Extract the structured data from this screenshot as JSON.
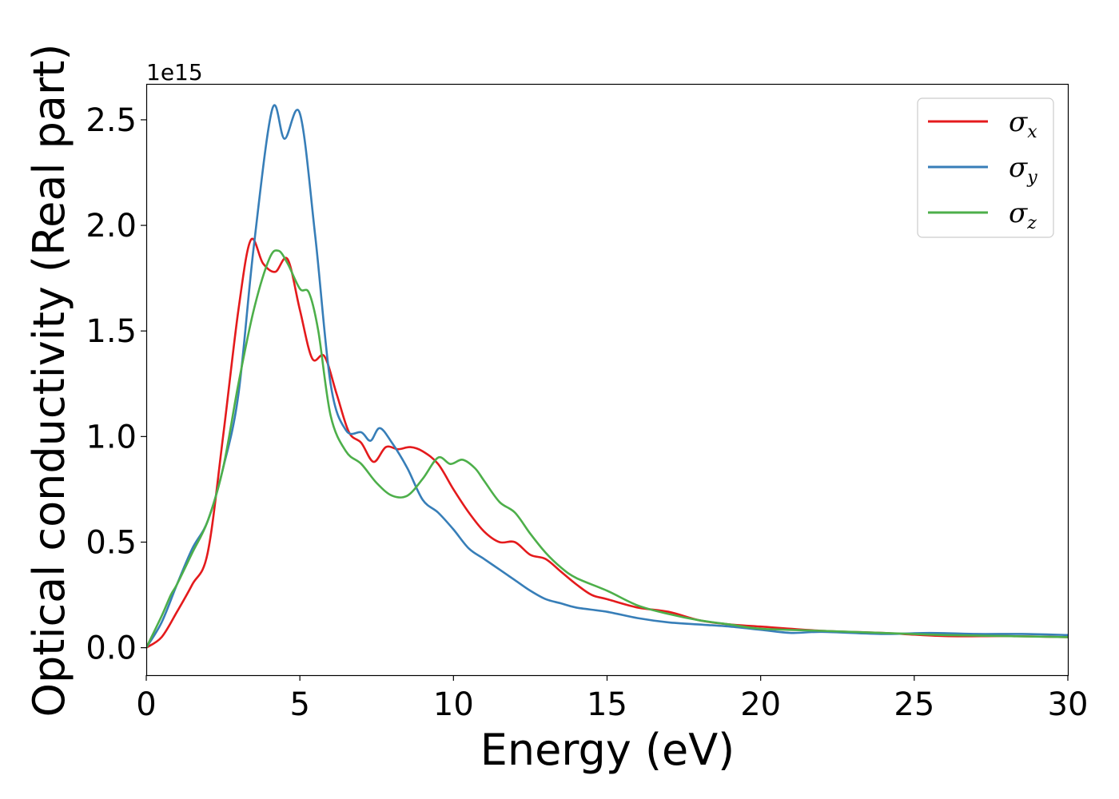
{
  "chart_data": {
    "type": "line",
    "title": "",
    "xlabel": "Energy (eV)",
    "ylabel": "Optical conductivity (Real part)",
    "y_offset_label": "1e15",
    "xlim": [
      0,
      30
    ],
    "ylim": [
      -0.13,
      2.67
    ],
    "x_ticks": [
      0,
      5,
      10,
      15,
      20,
      25,
      30
    ],
    "x_tick_labels": [
      "0",
      "5",
      "10",
      "15",
      "20",
      "25",
      "30"
    ],
    "y_ticks": [
      0.0,
      0.5,
      1.0,
      1.5,
      2.0,
      2.5
    ],
    "y_tick_labels": [
      "0.0",
      "0.5",
      "1.0",
      "1.5",
      "2.0",
      "2.5"
    ],
    "grid": false,
    "legend_position": "top-right",
    "series": [
      {
        "name": "σx",
        "symbol": "σ",
        "subscript": "x",
        "color": "#e41a1c",
        "x": [
          0,
          0.5,
          1,
          1.5,
          2,
          2.5,
          3,
          3.4,
          3.8,
          4.2,
          4.6,
          5,
          5.4,
          5.8,
          6.2,
          6.6,
          7,
          7.4,
          7.8,
          8.2,
          8.6,
          9,
          9.5,
          10,
          10.5,
          11,
          11.5,
          12,
          12.5,
          13,
          13.5,
          14,
          14.5,
          15,
          16,
          17,
          18,
          19,
          20,
          22,
          24,
          26,
          28,
          30
        ],
        "y": [
          0,
          0.05,
          0.17,
          0.3,
          0.45,
          1.0,
          1.6,
          1.93,
          1.82,
          1.78,
          1.84,
          1.6,
          1.37,
          1.38,
          1.2,
          1.02,
          0.97,
          0.88,
          0.95,
          0.94,
          0.95,
          0.93,
          0.87,
          0.75,
          0.64,
          0.55,
          0.5,
          0.5,
          0.44,
          0.42,
          0.36,
          0.3,
          0.25,
          0.23,
          0.19,
          0.17,
          0.13,
          0.11,
          0.1,
          0.08,
          0.07,
          0.055,
          0.055,
          0.05
        ]
      },
      {
        "name": "σy",
        "symbol": "σ",
        "subscript": "y",
        "color": "#377eb8",
        "x": [
          0,
          0.5,
          1,
          1.5,
          2,
          2.5,
          3,
          3.5,
          4.1,
          4.5,
          5,
          5.5,
          6,
          6.5,
          7,
          7.3,
          7.6,
          8,
          8.5,
          9,
          9.5,
          10,
          10.5,
          11,
          11.5,
          12,
          12.5,
          13,
          13.5,
          14,
          15,
          16,
          17,
          18,
          19,
          20,
          21,
          22,
          24,
          25.5,
          27,
          28.5,
          30
        ],
        "y": [
          0,
          0.12,
          0.3,
          0.47,
          0.6,
          0.85,
          1.2,
          1.9,
          2.55,
          2.41,
          2.53,
          1.95,
          1.25,
          1.03,
          1.02,
          0.98,
          1.04,
          0.97,
          0.85,
          0.7,
          0.64,
          0.56,
          0.47,
          0.42,
          0.37,
          0.32,
          0.27,
          0.23,
          0.21,
          0.19,
          0.17,
          0.14,
          0.12,
          0.11,
          0.1,
          0.085,
          0.07,
          0.075,
          0.065,
          0.07,
          0.065,
          0.065,
          0.06
        ]
      },
      {
        "name": "σz",
        "symbol": "σ",
        "subscript": "z",
        "color": "#4daf4a",
        "x": [
          0,
          0.5,
          0.8,
          1,
          1.5,
          2,
          2.5,
          3,
          3.5,
          4,
          4.3,
          4.6,
          5,
          5.3,
          5.6,
          6,
          6.5,
          7,
          7.5,
          8,
          8.5,
          9,
          9.5,
          9.9,
          10.3,
          10.7,
          11,
          11.5,
          12,
          12.5,
          13,
          13.5,
          14,
          15,
          16,
          17,
          18,
          19,
          20,
          22,
          24,
          26,
          28,
          30
        ],
        "y": [
          0,
          0.15,
          0.25,
          0.3,
          0.45,
          0.6,
          0.85,
          1.25,
          1.6,
          1.84,
          1.88,
          1.82,
          1.7,
          1.68,
          1.5,
          1.1,
          0.93,
          0.87,
          0.78,
          0.72,
          0.72,
          0.8,
          0.9,
          0.87,
          0.89,
          0.85,
          0.79,
          0.69,
          0.64,
          0.54,
          0.45,
          0.38,
          0.33,
          0.27,
          0.2,
          0.16,
          0.13,
          0.11,
          0.09,
          0.08,
          0.07,
          0.06,
          0.055,
          0.05
        ]
      }
    ]
  }
}
